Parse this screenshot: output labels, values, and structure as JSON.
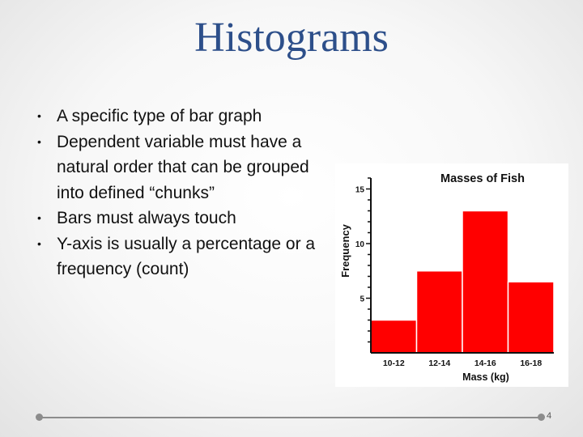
{
  "slide": {
    "title": "Histograms",
    "bullets": [
      "A specific type of bar graph",
      "Dependent variable must have a natural order that can be grouped into defined “chunks”",
      "Bars must always touch",
      "Y-axis is usually a percentage or a frequency (count)"
    ],
    "bullet_marker": "•",
    "page_number": "4"
  },
  "colors": {
    "title": "#2d4f8a",
    "bar": "#ff0000",
    "footer": "#8c8c8c"
  },
  "chart_data": {
    "type": "bar",
    "title": "Masses of Fish",
    "xlabel": "Mass (kg)",
    "ylabel": "Frequency",
    "categories": [
      "10-12",
      "12-14",
      "14-16",
      "16-18"
    ],
    "values": [
      3,
      7.5,
      13,
      6.5
    ],
    "ylim": [
      0,
      16
    ],
    "yticks": [
      5,
      10,
      15
    ],
    "bars_touch": true,
    "grid": false
  }
}
